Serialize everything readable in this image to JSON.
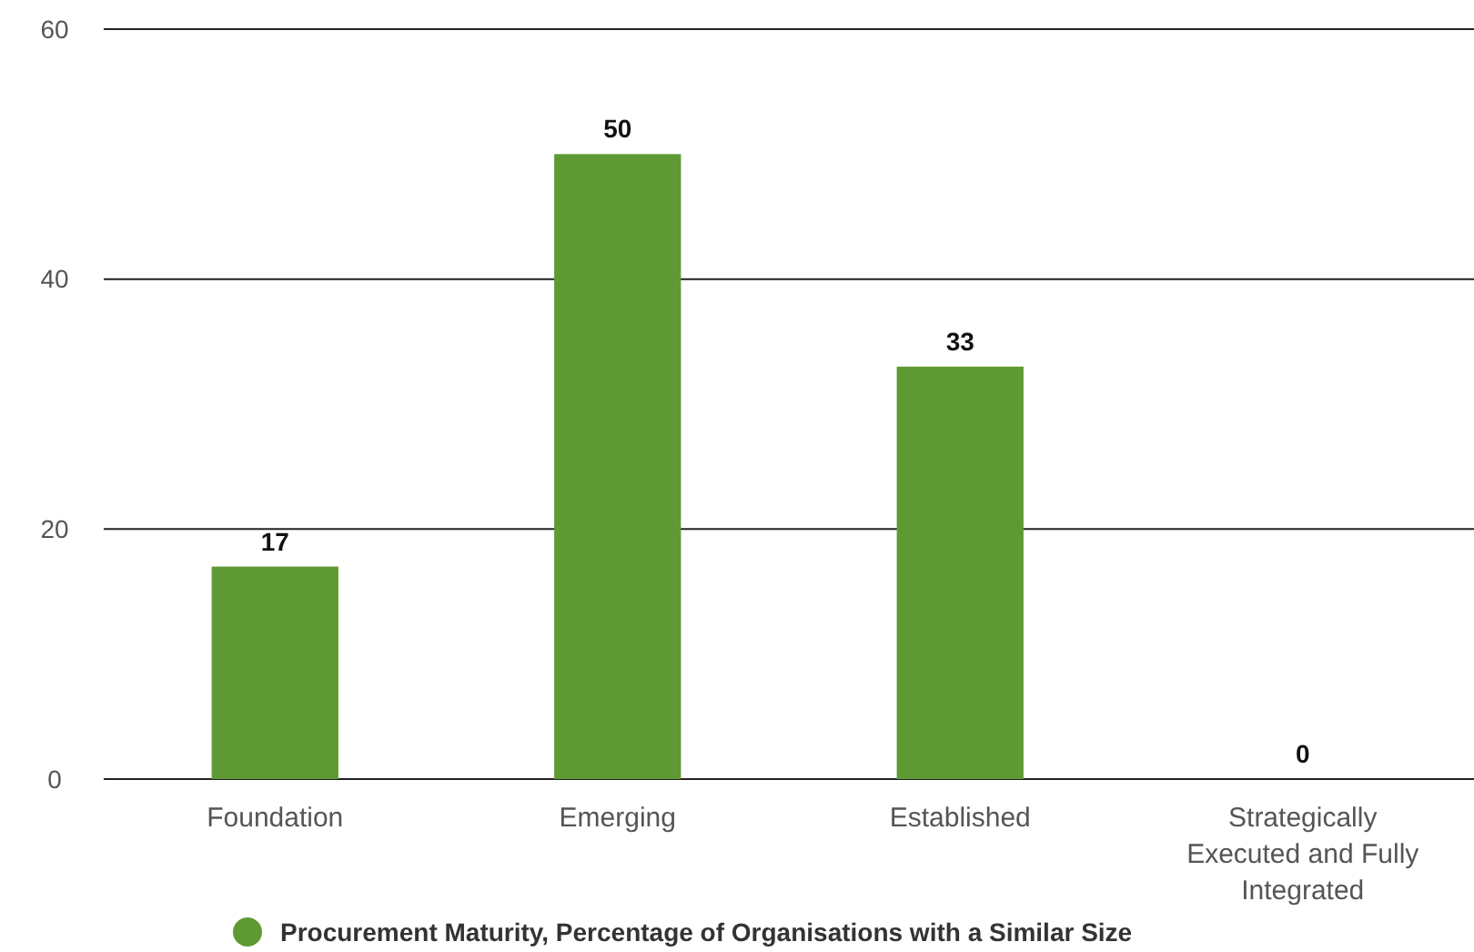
{
  "chart_data": {
    "type": "bar",
    "categories": [
      "Foundation",
      "Emerging",
      "Established",
      "Strategically Executed and Fully Integrated"
    ],
    "series": [
      {
        "name": "Procurement Maturity, Percentage of Organisations with a Similar Size",
        "color": "#5f9934",
        "values": [
          17,
          50,
          33,
          0
        ]
      }
    ],
    "ylim": [
      0,
      60
    ],
    "yticks": [
      0,
      20,
      40,
      60
    ],
    "grid": "y",
    "data_labels": true,
    "legend": "bottom"
  }
}
